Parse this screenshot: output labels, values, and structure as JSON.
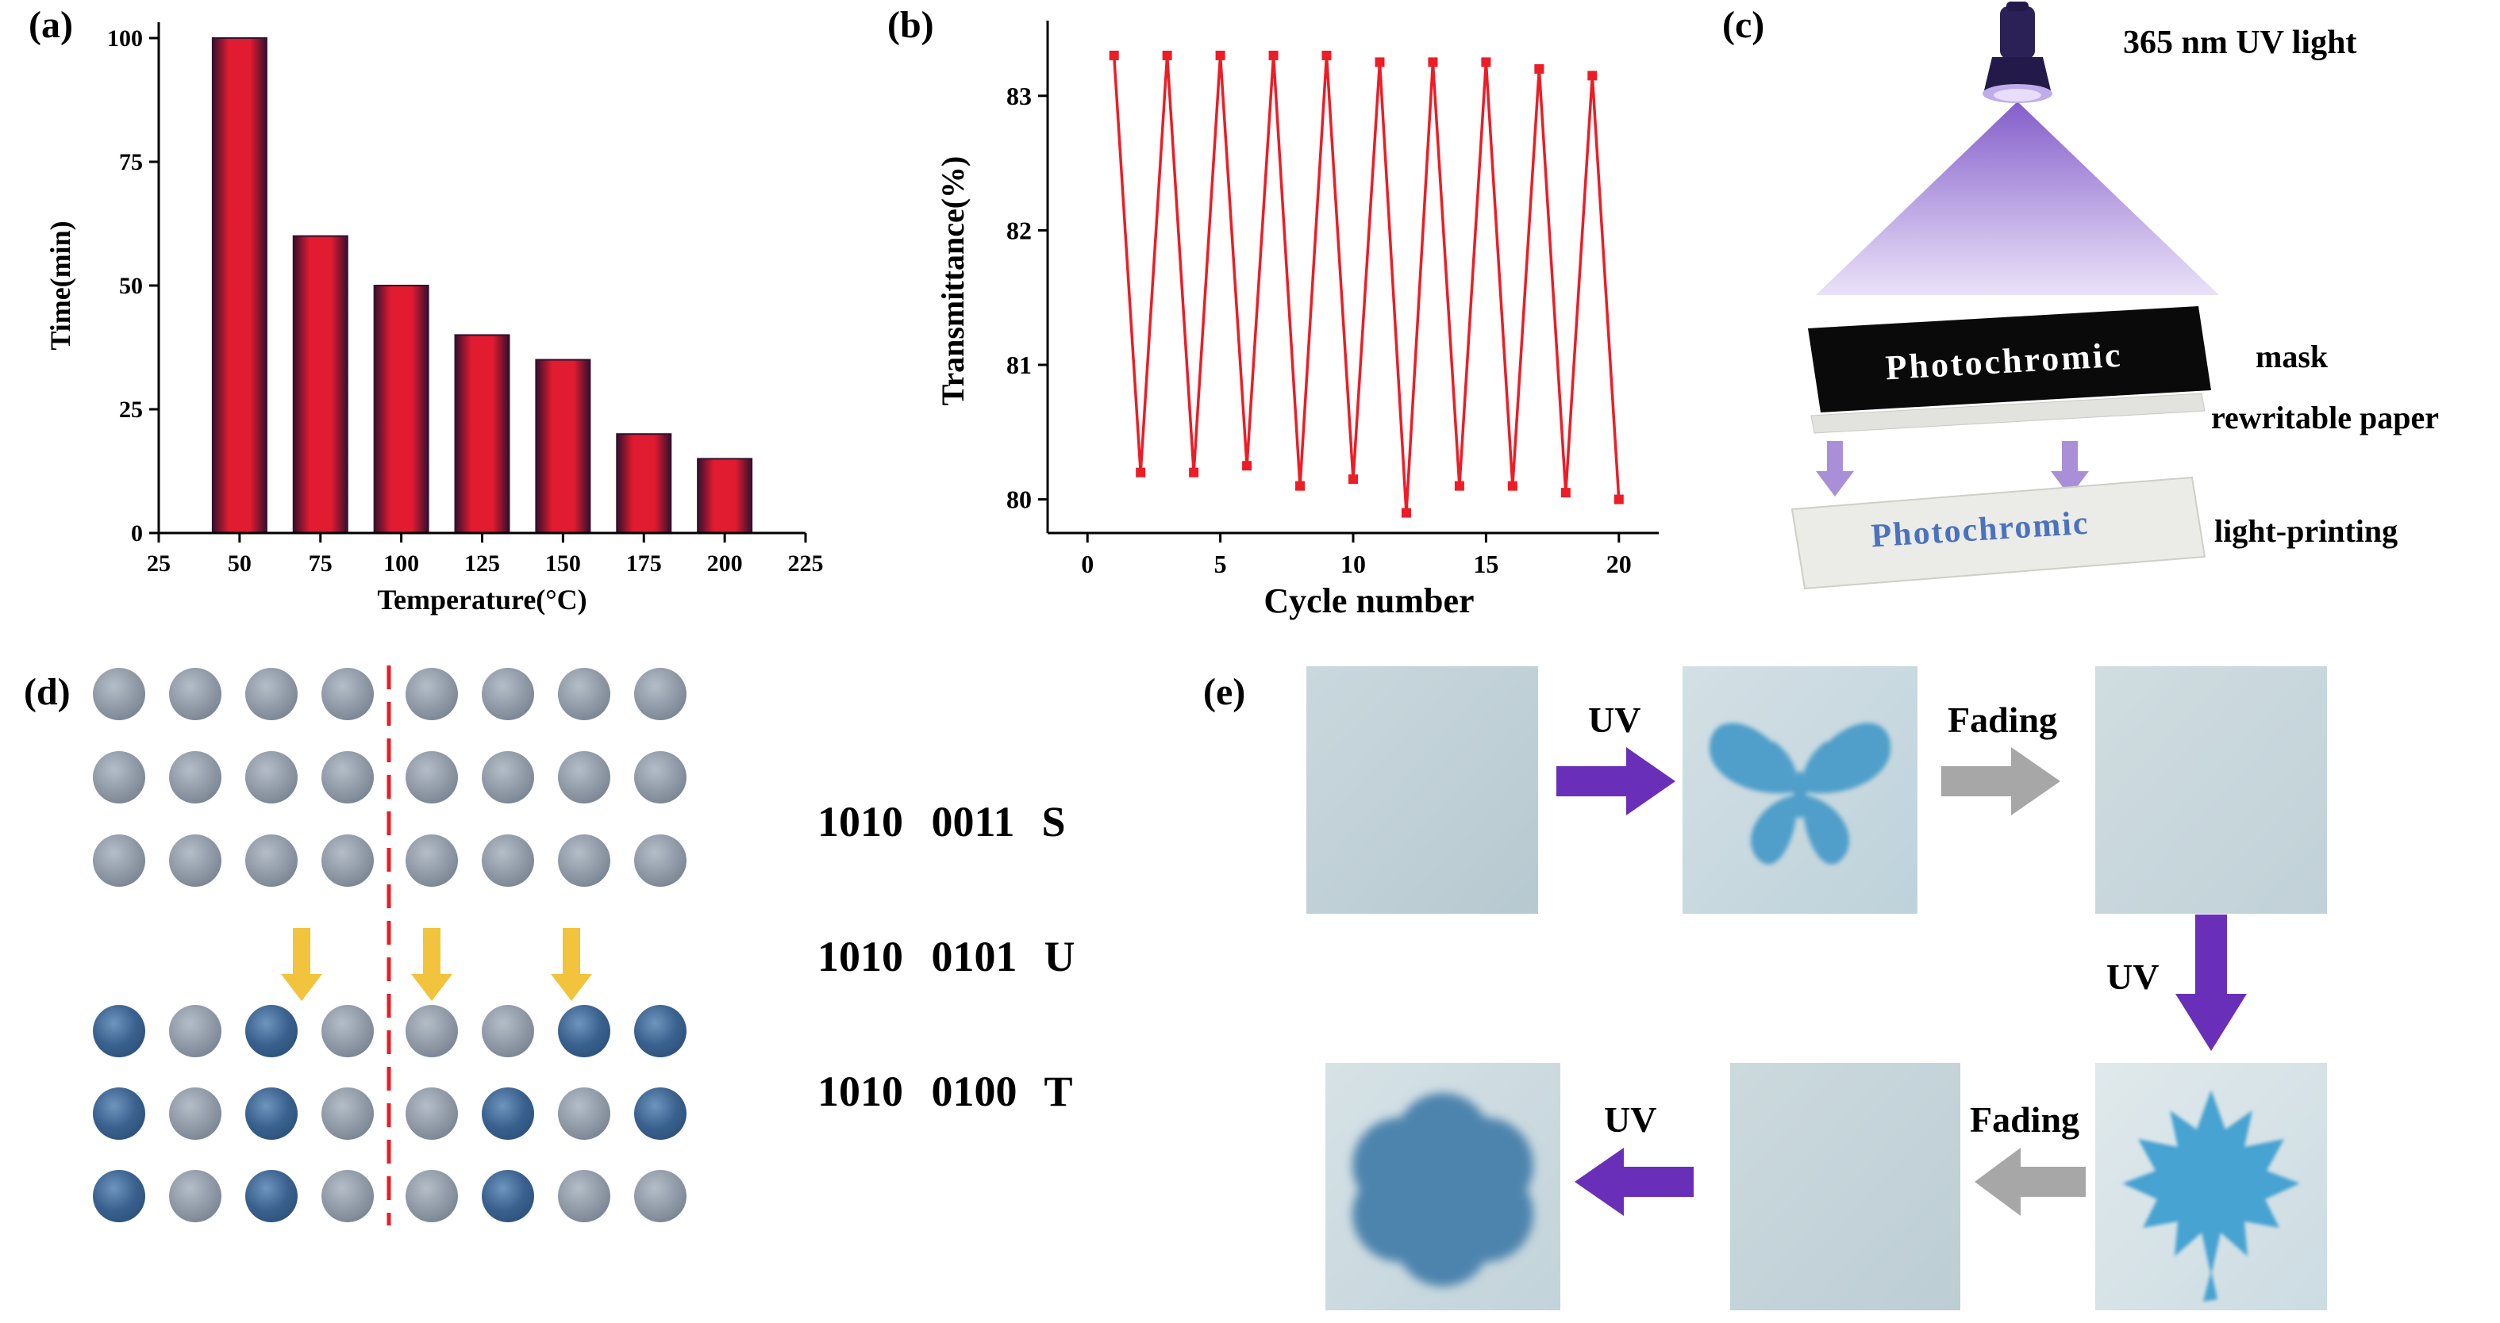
{
  "panels": {
    "a": {
      "label": "(a)"
    },
    "b": {
      "label": "(b)"
    },
    "c": {
      "label": "(c)",
      "uv_light_label": "365 nm UV light",
      "mask_text": "Photochromic",
      "mask_label": "mask",
      "paper_label": "rewritable paper",
      "print_text": "Photochromic",
      "print_label": "light-printing",
      "colors": {
        "cone": "#7d55c7",
        "pass_arrow": "#a98fd8",
        "print_text_blue": "#4a72bd"
      }
    },
    "d": {
      "label": "(d)",
      "top_grid": [
        [
          0,
          0,
          0,
          0,
          0,
          0,
          0,
          0
        ],
        [
          0,
          0,
          0,
          0,
          0,
          0,
          0,
          0
        ],
        [
          0,
          0,
          0,
          0,
          0,
          0,
          0,
          0
        ]
      ],
      "bottom_grid": [
        [
          1,
          0,
          1,
          0,
          0,
          0,
          1,
          1
        ],
        [
          1,
          0,
          1,
          0,
          0,
          1,
          0,
          1
        ],
        [
          1,
          0,
          1,
          0,
          0,
          1,
          0,
          0
        ]
      ],
      "codes": [
        {
          "binary": "1010 0011",
          "letter": "S"
        },
        {
          "binary": "1010 0101",
          "letter": "U"
        },
        {
          "binary": "1010 0100",
          "letter": "T"
        }
      ],
      "colors": {
        "unwritten_dot": "#8d97a4",
        "written_dot": "#3a618e",
        "divider": "#ea1c24",
        "arrow": "#f2c33c"
      }
    },
    "e": {
      "label": "(e)",
      "arrow_labels": {
        "uv1": "UV",
        "fading1": "Fading",
        "uv2": "UV",
        "uv3": "UV",
        "fading2": "Fading"
      },
      "images": [
        "blank",
        "butterfly",
        "blank-faded",
        "maple-leaf",
        "blank-faded",
        "flower"
      ],
      "colors": {
        "uv_arrow": "#6a2fb8",
        "fading_arrow": "#a7a7a7",
        "print_blue": "#4f9fca"
      }
    }
  },
  "chart_data": [
    {
      "panel": "a",
      "type": "bar",
      "title": "",
      "xlabel": "Temperature(°C)",
      "ylabel": "Time(min)",
      "categories": [
        50,
        75,
        100,
        125,
        150,
        175,
        200
      ],
      "values": [
        100,
        60,
        50,
        40,
        35,
        20,
        15
      ],
      "xlim": [
        25,
        225
      ],
      "ylim": [
        0,
        100
      ],
      "xticks": [
        25,
        50,
        75,
        100,
        125,
        150,
        175,
        200,
        225
      ],
      "yticks": [
        0,
        25,
        50,
        75,
        100
      ],
      "bar_color": "#e11b30",
      "bar_edge_color": "#35102e",
      "grid": false,
      "legend": "none"
    },
    {
      "panel": "b",
      "type": "line",
      "title": "",
      "xlabel": "Cycle number",
      "ylabel": "Transmittance(%)",
      "x": [
        1,
        2,
        3,
        4,
        5,
        6,
        7,
        8,
        9,
        10,
        11,
        12,
        13,
        14,
        15,
        16,
        17,
        18,
        19,
        20
      ],
      "values": [
        83.3,
        80.2,
        83.3,
        80.2,
        83.3,
        80.25,
        83.3,
        80.1,
        83.3,
        80.15,
        83.25,
        79.9,
        83.25,
        80.1,
        83.25,
        80.1,
        83.2,
        80.05,
        83.15,
        80.0
      ],
      "xlim": [
        -1.5,
        21.5
      ],
      "ylim": [
        79.75,
        83.5
      ],
      "xticks": [
        0,
        5,
        10,
        15,
        20
      ],
      "yticks": [
        80,
        81,
        82,
        83
      ],
      "line_color": "#ee1c25",
      "marker": "square",
      "grid": false,
      "legend": "none"
    }
  ]
}
